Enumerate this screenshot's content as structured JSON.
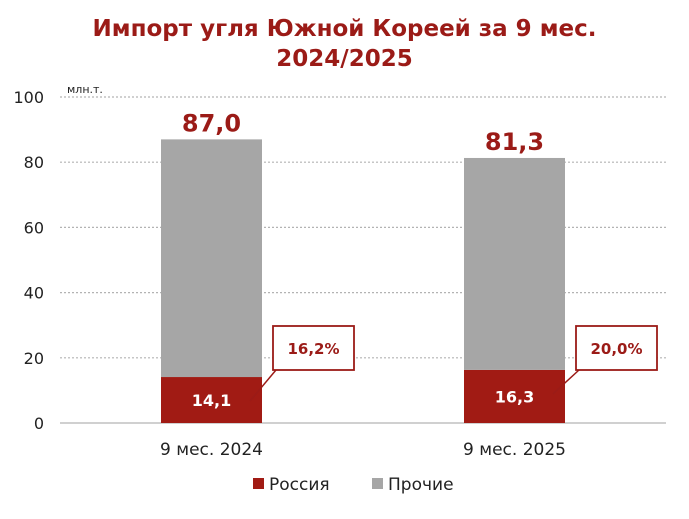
{
  "chart_data": {
    "type": "bar",
    "stacked": true,
    "title_line1": "Импорт угля Южной Кореей за 9 мес.",
    "title_line2": "2024/2025",
    "unit_label": "млн.т.",
    "categories": [
      "9 мес. 2024",
      "9 мес. 2025"
    ],
    "y_ticks": [
      "0",
      "20",
      "40",
      "60",
      "80",
      "100"
    ],
    "ylim": [
      0,
      100
    ],
    "grid": true,
    "legend_position": "bottom",
    "series": [
      {
        "name": "Россия",
        "color": "#a11b14",
        "values": [
          14.1,
          16.3
        ],
        "value_labels": [
          "14,1",
          "16,3"
        ]
      },
      {
        "name": "Прочие",
        "color": "#a6a6a6",
        "values": [
          72.9,
          65.0
        ]
      }
    ],
    "totals": [
      87.0,
      81.3
    ],
    "total_labels": [
      "87,0",
      "81,3"
    ],
    "share_labels": [
      "16,2%",
      "20,0%"
    ]
  }
}
